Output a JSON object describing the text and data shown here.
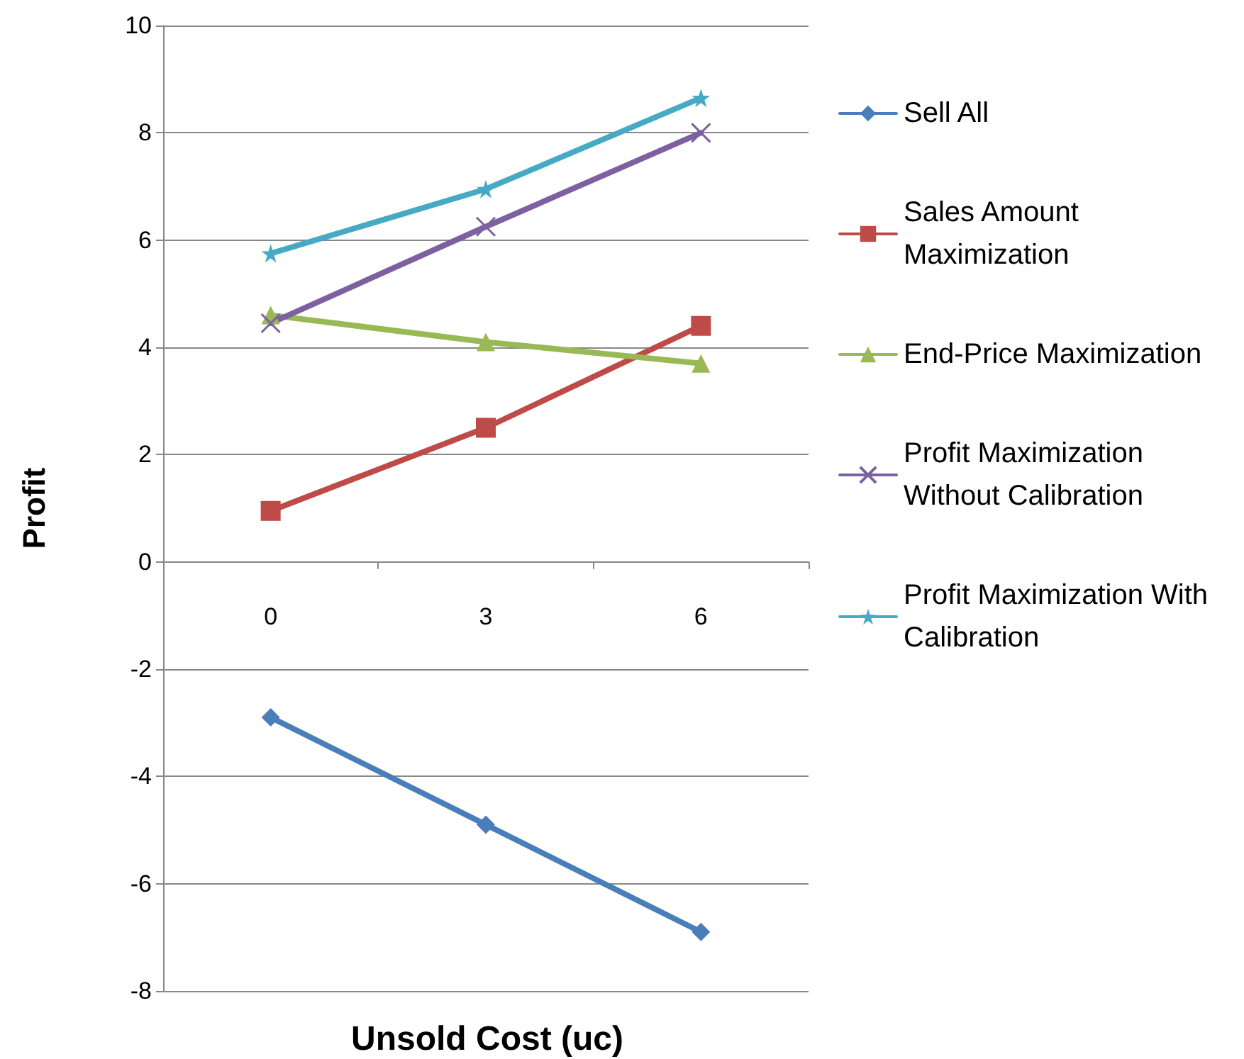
{
  "chart_data": {
    "type": "line",
    "xlabel": "Unsold Cost (uc)",
    "ylabel": "Profit",
    "categories": [
      "0",
      "3",
      "6"
    ],
    "ylim": [
      -8,
      10
    ],
    "yticks": [
      -8,
      -6,
      -4,
      -2,
      0,
      2,
      4,
      6,
      8,
      10
    ],
    "grid": "y",
    "legend": "right",
    "series": [
      {
        "name": "Sell All",
        "color": "#4a7ebb",
        "marker": "diamond",
        "values": [
          -2.9,
          -4.9,
          -6.9
        ]
      },
      {
        "name": "Sales Amount Maximization",
        "color": "#be4b48",
        "marker": "square",
        "values": [
          0.95,
          2.5,
          4.4
        ]
      },
      {
        "name": "End-Price Maximization",
        "color": "#98b954",
        "marker": "triangle",
        "values": [
          4.6,
          4.1,
          3.7
        ]
      },
      {
        "name": "Profit Maximization Without Calibration",
        "color": "#7d60a0",
        "marker": "cross",
        "values": [
          4.45,
          6.25,
          8.0
        ]
      },
      {
        "name": "Profit Maximization With Calibration",
        "color": "#46aac5",
        "marker": "star",
        "values": [
          5.75,
          6.95,
          8.65
        ]
      }
    ]
  }
}
